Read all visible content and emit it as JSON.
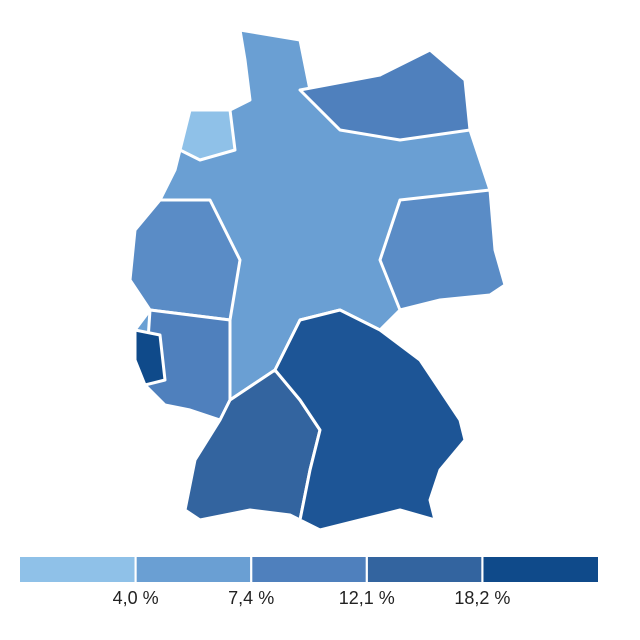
{
  "legend": {
    "colors": [
      "#8fc1e8",
      "#6a9fd3",
      "#4f80bd",
      "#33649f",
      "#0f4a8a"
    ],
    "breaks": [
      {
        "value": 4.0,
        "label": "4,0 %"
      },
      {
        "value": 7.4,
        "label": "7,4 %"
      },
      {
        "value": 12.1,
        "label": "12,1 %"
      },
      {
        "value": 18.2,
        "label": "18,2 %"
      }
    ]
  }
}
